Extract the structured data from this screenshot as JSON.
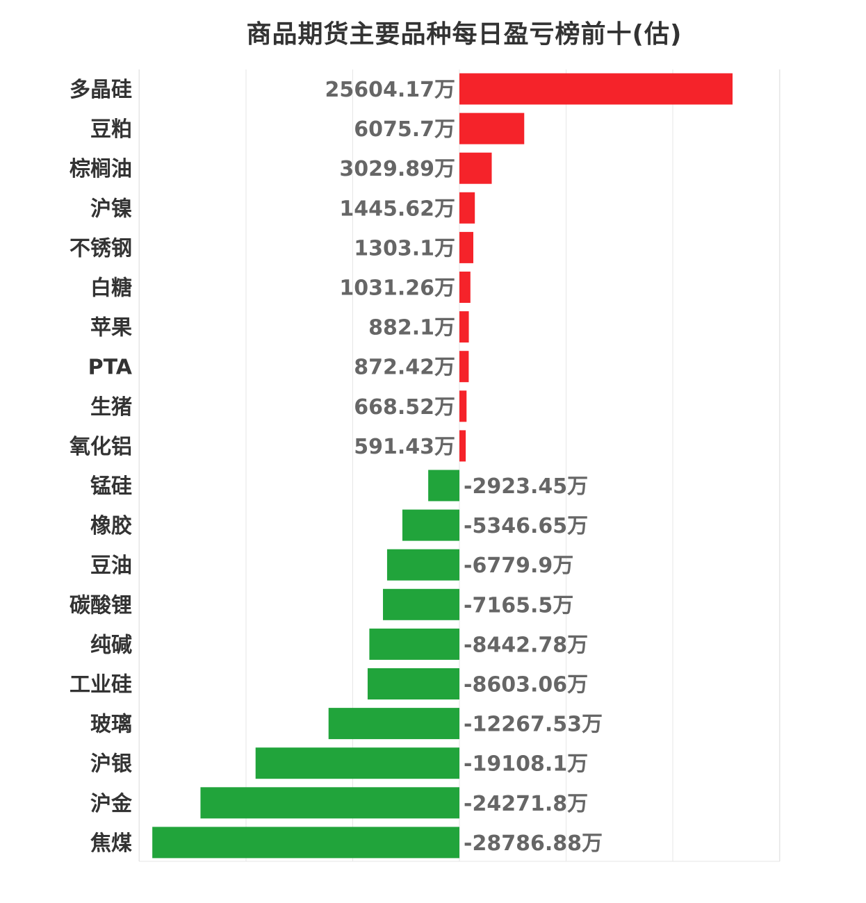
{
  "chart_data": {
    "type": "bar",
    "orientation": "horizontal",
    "title": "商品期货主要品种每日盈亏榜前十(估)",
    "categories": [
      "多晶硅",
      "豆粕",
      "棕榈油",
      "沪镍",
      "不锈钢",
      "白糖",
      "苹果",
      "PTA",
      "生猪",
      "氧化铝",
      "锰硅",
      "橡胶",
      "豆油",
      "碳酸锂",
      "纯碱",
      "工业硅",
      "玻璃",
      "沪银",
      "沪金",
      "焦煤"
    ],
    "values": [
      25604.17,
      6075.7,
      3029.89,
      1445.62,
      1303.1,
      1031.26,
      882.1,
      872.42,
      668.52,
      591.43,
      -2923.45,
      -5346.65,
      -6779.9,
      -7165.5,
      -8442.78,
      -8603.06,
      -12267.53,
      -19108.1,
      -24271.8,
      -28786.88
    ],
    "value_labels": [
      "25604.17万",
      "6075.7万",
      "3029.89万",
      "1445.62万",
      "1303.1万",
      "1031.26万",
      "882.1万",
      "872.42万",
      "668.52万",
      "591.43万",
      "-2923.45万",
      "-5346.65万",
      "-6779.9万",
      "-7165.5万",
      "-8442.78万",
      "-8603.06万",
      "-12267.53万",
      "-19108.1万",
      "-24271.8万",
      "-28786.88万"
    ],
    "unit": "万",
    "xlim": [
      -30000,
      30000
    ],
    "grid": true,
    "legend": "none",
    "colors": {
      "positive": "#f5232a",
      "negative": "#21a43b",
      "category_text": "#333333",
      "value_text": "#666666",
      "grid": "#e6e6e6"
    }
  }
}
